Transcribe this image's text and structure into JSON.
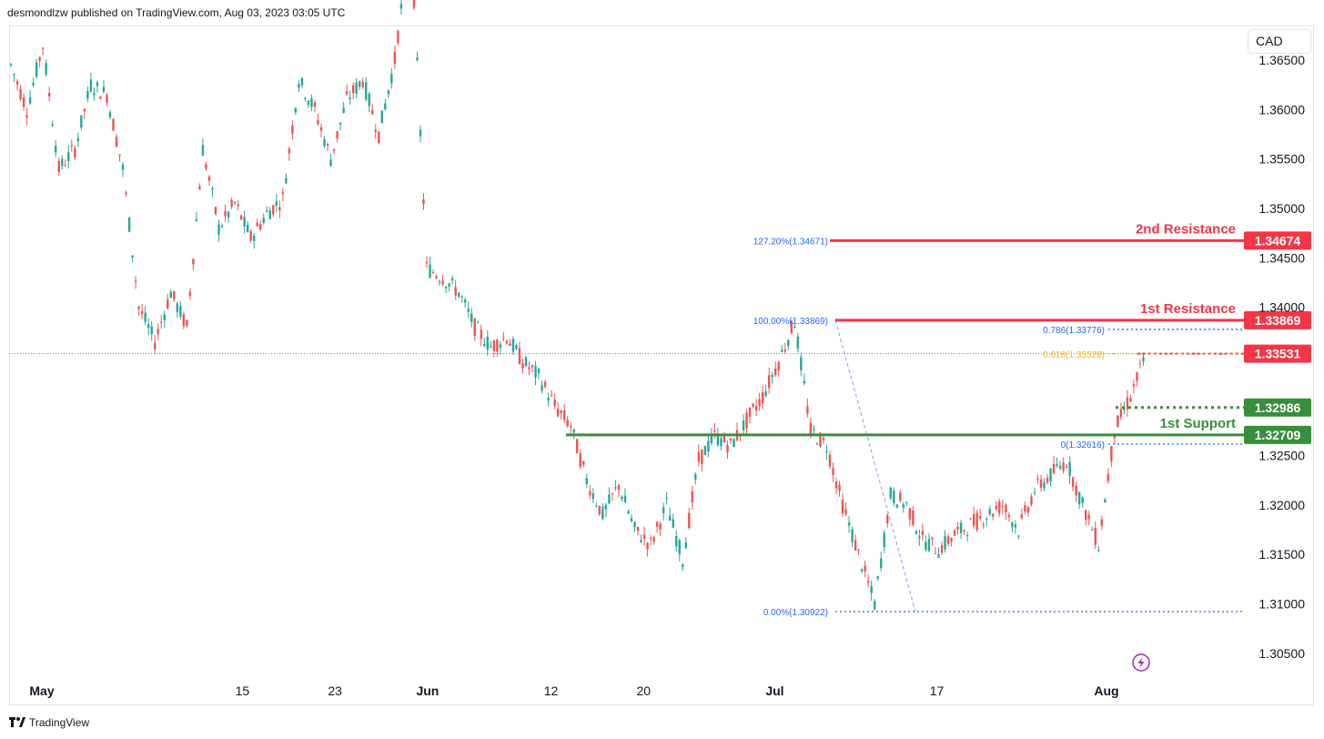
{
  "header": {
    "publisher_line": "desmondlzw published on TradingView.com, Aug 03, 2023 03:05 UTC"
  },
  "currency_label": "CAD",
  "footer": {
    "brand": "TradingView",
    "logo_icon": "tradingview-logo-icon"
  },
  "colors": {
    "up": "#26a69a",
    "down": "#ef5350",
    "resistance": "#f23645",
    "support": "#388e3c",
    "fib": "#2962ff",
    "fib_618": "#f7b51d"
  },
  "chart_data": {
    "type": "candlestick",
    "instrument_currency": "CAD",
    "ylim": [
      1.3025,
      1.3685
    ],
    "y_ticks": [
      "1.36500",
      "1.36000",
      "1.35500",
      "1.35000",
      "1.34500",
      "1.34000",
      "1.32500",
      "1.32000",
      "1.31500",
      "1.31000",
      "1.30500"
    ],
    "x_ticks": [
      {
        "label": "May",
        "bold": true,
        "pos": 0
      },
      {
        "label": "15",
        "bold": false,
        "pos": 13
      },
      {
        "label": "23",
        "bold": false,
        "pos": 19
      },
      {
        "label": "Jun",
        "bold": true,
        "pos": 25
      },
      {
        "label": "12",
        "bold": false,
        "pos": 33
      },
      {
        "label": "20",
        "bold": false,
        "pos": 39
      },
      {
        "label": "Jul",
        "bold": true,
        "pos": 47.5
      },
      {
        "label": "17",
        "bold": false,
        "pos": 58
      },
      {
        "label": "Aug",
        "bold": true,
        "pos": 69
      }
    ],
    "x_domain": [
      -1.5,
      80
    ],
    "close_series": [
      1.3645,
      1.36,
      1.3665,
      1.354,
      1.356,
      1.3625,
      1.3615,
      1.354,
      1.34,
      1.3365,
      1.3415,
      1.338,
      1.356,
      1.348,
      1.3505,
      1.347,
      1.3495,
      1.351,
      1.363,
      1.36,
      1.355,
      1.361,
      1.363,
      1.3575,
      1.365,
      1.378,
      1.344,
      1.343,
      1.3415,
      1.338,
      1.336,
      1.337,
      1.3345,
      1.333,
      1.33,
      1.328,
      1.3225,
      1.319,
      1.322,
      1.3175,
      1.316,
      1.32,
      1.3145,
      1.3245,
      1.327,
      1.326,
      1.3285,
      1.331,
      1.3345,
      1.3386,
      1.3275,
      1.326,
      1.32,
      1.315,
      1.31,
      1.321,
      1.32,
      1.3165,
      1.3155,
      1.317,
      1.318,
      1.319,
      1.32,
      1.3175,
      1.3215,
      1.323,
      1.3245,
      1.32,
      1.316,
      1.3275,
      1.331,
      1.3353
    ],
    "levels": [
      {
        "name": "2nd Resistance",
        "value": 1.34674,
        "value_label": "1.34674",
        "kind": "resistance"
      },
      {
        "name": "1st Resistance",
        "value": 1.33869,
        "value_label": "1.33869",
        "kind": "resistance"
      },
      {
        "name": "",
        "value": 1.33531,
        "value_label": "1.33531",
        "kind": "current"
      },
      {
        "name": "",
        "value": 1.32986,
        "value_label": "1.32986",
        "kind": "support_minor"
      },
      {
        "name": "1st Support",
        "value": 1.32709,
        "value_label": "1.32709",
        "kind": "support"
      }
    ],
    "fib_labels": [
      {
        "text": "127.20%(1.34671)",
        "value": 1.34671
      },
      {
        "text": "100.00%(1.33869)",
        "value": 1.33869
      },
      {
        "text": "0.786(1.33776)",
        "value": 1.33776
      },
      {
        "text": "0.618(1.33528)",
        "value": 1.33528
      },
      {
        "text": "0(1.32616)",
        "value": 1.32616
      },
      {
        "text": "0.00%(1.30922)",
        "value": 1.30922
      }
    ],
    "lightning_icon": "lightning-icon"
  }
}
